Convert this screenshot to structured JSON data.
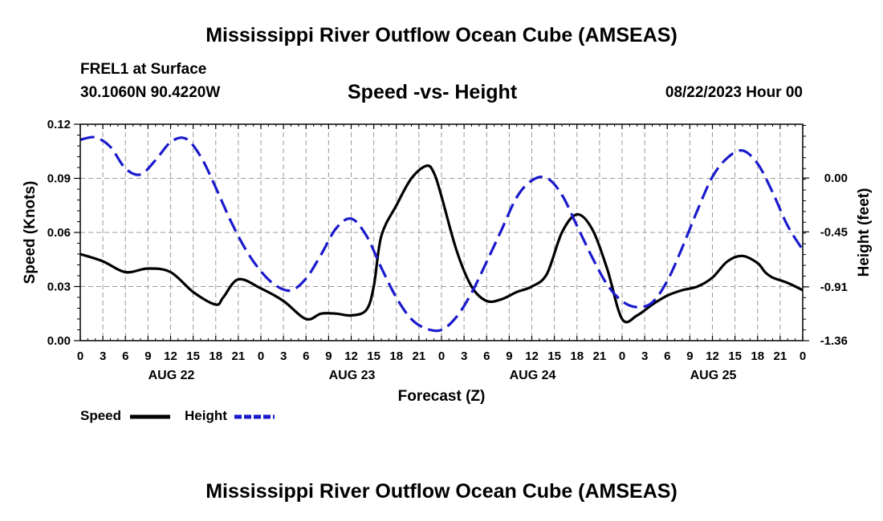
{
  "title": "Mississippi River Outflow Ocean Cube (AMSEAS)",
  "footer_title": "Mississippi River Outflow Ocean Cube (AMSEAS)",
  "station": "FREL1 at Surface",
  "coords": "30.1060N  90.4220W",
  "subtitle": "Speed -vs- Height",
  "datetime": "08/22/2023 Hour 00",
  "colors": {
    "speed": "#000000",
    "height": "#1a1acc",
    "grid": "#999999"
  },
  "chart_data": {
    "type": "line",
    "xlabel": "Forecast (Z)",
    "ylabel": "Speed (Knots)",
    "y2label": "Height (feet)",
    "xlim": [
      0,
      96
    ],
    "ylim": [
      0,
      0.12
    ],
    "y2lim": [
      -1.36,
      0.45
    ],
    "yticks": [
      0.0,
      0.03,
      0.06,
      0.09,
      0.12
    ],
    "ytick_labels": [
      "0.00",
      "0.03",
      "0.06",
      "0.09",
      "0.12"
    ],
    "y2ticks": [
      -1.36,
      -0.91,
      -0.45,
      0.0
    ],
    "y2tick_labels": [
      "-1.36",
      "-0.91",
      "-0.45",
      "0.00"
    ],
    "xtick_labels": [
      "0",
      "3",
      "6",
      "9",
      "12",
      "15",
      "18",
      "21",
      "0",
      "3",
      "6",
      "9",
      "12",
      "15",
      "18",
      "21",
      "0",
      "3",
      "6",
      "9",
      "12",
      "15",
      "18",
      "21",
      "0",
      "3",
      "6",
      "9",
      "12",
      "15",
      "18",
      "21",
      "0"
    ],
    "day_labels": [
      {
        "label": "AUG 22",
        "x": 12
      },
      {
        "label": "AUG 23",
        "x": 36
      },
      {
        "label": "AUG 24",
        "x": 60
      },
      {
        "label": "AUG 25",
        "x": 84
      }
    ],
    "grid": true,
    "series": [
      {
        "name": "Speed",
        "axis": "left",
        "style": "solid",
        "x": [
          0,
          3,
          6,
          9,
          12,
          15,
          18,
          19,
          21,
          24,
          27,
          30,
          32,
          34,
          36,
          38,
          39,
          40,
          42,
          44,
          46,
          47,
          48,
          50,
          52,
          54,
          56,
          58,
          60,
          62,
          64,
          66,
          68,
          70,
          72,
          74,
          76,
          78,
          80,
          82,
          84,
          86,
          88,
          90,
          91,
          92,
          94,
          96
        ],
        "y": [
          0.048,
          0.044,
          0.038,
          0.04,
          0.038,
          0.027,
          0.02,
          0.024,
          0.034,
          0.029,
          0.022,
          0.012,
          0.015,
          0.015,
          0.014,
          0.017,
          0.03,
          0.058,
          0.075,
          0.09,
          0.097,
          0.093,
          0.08,
          0.05,
          0.03,
          0.022,
          0.023,
          0.027,
          0.03,
          0.037,
          0.06,
          0.07,
          0.062,
          0.04,
          0.012,
          0.014,
          0.02,
          0.025,
          0.028,
          0.03,
          0.035,
          0.044,
          0.047,
          0.043,
          0.038,
          0.035,
          0.032,
          0.028
        ]
      },
      {
        "name": "Height",
        "axis": "right",
        "style": "dashed",
        "x": [
          0,
          2,
          4,
          6,
          8,
          10,
          12,
          14,
          16,
          18,
          20,
          22,
          24,
          26,
          28,
          30,
          32,
          34,
          36,
          38,
          40,
          42,
          44,
          46,
          48,
          50,
          52,
          54,
          56,
          58,
          60,
          62,
          64,
          66,
          68,
          70,
          72,
          74,
          76,
          78,
          80,
          82,
          84,
          86,
          88,
          90,
          92,
          94,
          96
        ],
        "y": [
          0.32,
          0.34,
          0.26,
          0.08,
          0.03,
          0.15,
          0.3,
          0.33,
          0.18,
          -0.08,
          -0.36,
          -0.6,
          -0.78,
          -0.9,
          -0.94,
          -0.84,
          -0.64,
          -0.42,
          -0.34,
          -0.48,
          -0.75,
          -1.0,
          -1.18,
          -1.26,
          -1.27,
          -1.16,
          -0.96,
          -0.7,
          -0.43,
          -0.16,
          -0.02,
          0.0,
          -0.14,
          -0.4,
          -0.66,
          -0.89,
          -1.03,
          -1.08,
          -1.04,
          -0.86,
          -0.58,
          -0.27,
          0.01,
          0.17,
          0.23,
          0.12,
          -0.12,
          -0.4,
          -0.6
        ]
      }
    ]
  },
  "legend": {
    "speed_label": "Speed",
    "height_label": "Height"
  }
}
